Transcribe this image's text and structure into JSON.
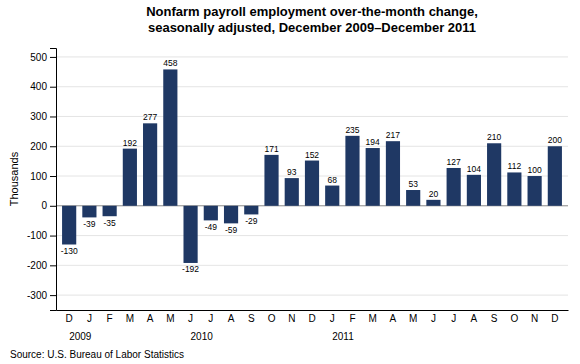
{
  "chart_data": {
    "type": "bar",
    "title": "Nonfarm payroll employment over-the-month change,\nseasonally adjusted, December 2009–December 2011",
    "ylabel": "Thousands",
    "source": "Source: U.S. Bureau of Labor Statistics",
    "categories": [
      "D",
      "J",
      "F",
      "M",
      "A",
      "M",
      "J",
      "J",
      "A",
      "S",
      "O",
      "N",
      "D",
      "J",
      "F",
      "M",
      "A",
      "M",
      "J",
      "J",
      "A",
      "S",
      "O",
      "N",
      "D"
    ],
    "values": [
      -130,
      -39,
      -35,
      192,
      277,
      458,
      -192,
      -49,
      -59,
      -29,
      171,
      93,
      152,
      68,
      235,
      194,
      217,
      53,
      20,
      127,
      104,
      210,
      112,
      100,
      200
    ],
    "color": "#1F3864",
    "ylim": [
      -350,
      530
    ],
    "yticks": [
      -300,
      -200,
      -100,
      0,
      100,
      200,
      300,
      400,
      500
    ],
    "grid": true,
    "data_labels": true,
    "annotations": [
      {
        "text": "2009",
        "x": 0
      },
      {
        "text": "2010",
        "x": 6
      },
      {
        "text": "2011",
        "x": 13
      }
    ]
  }
}
